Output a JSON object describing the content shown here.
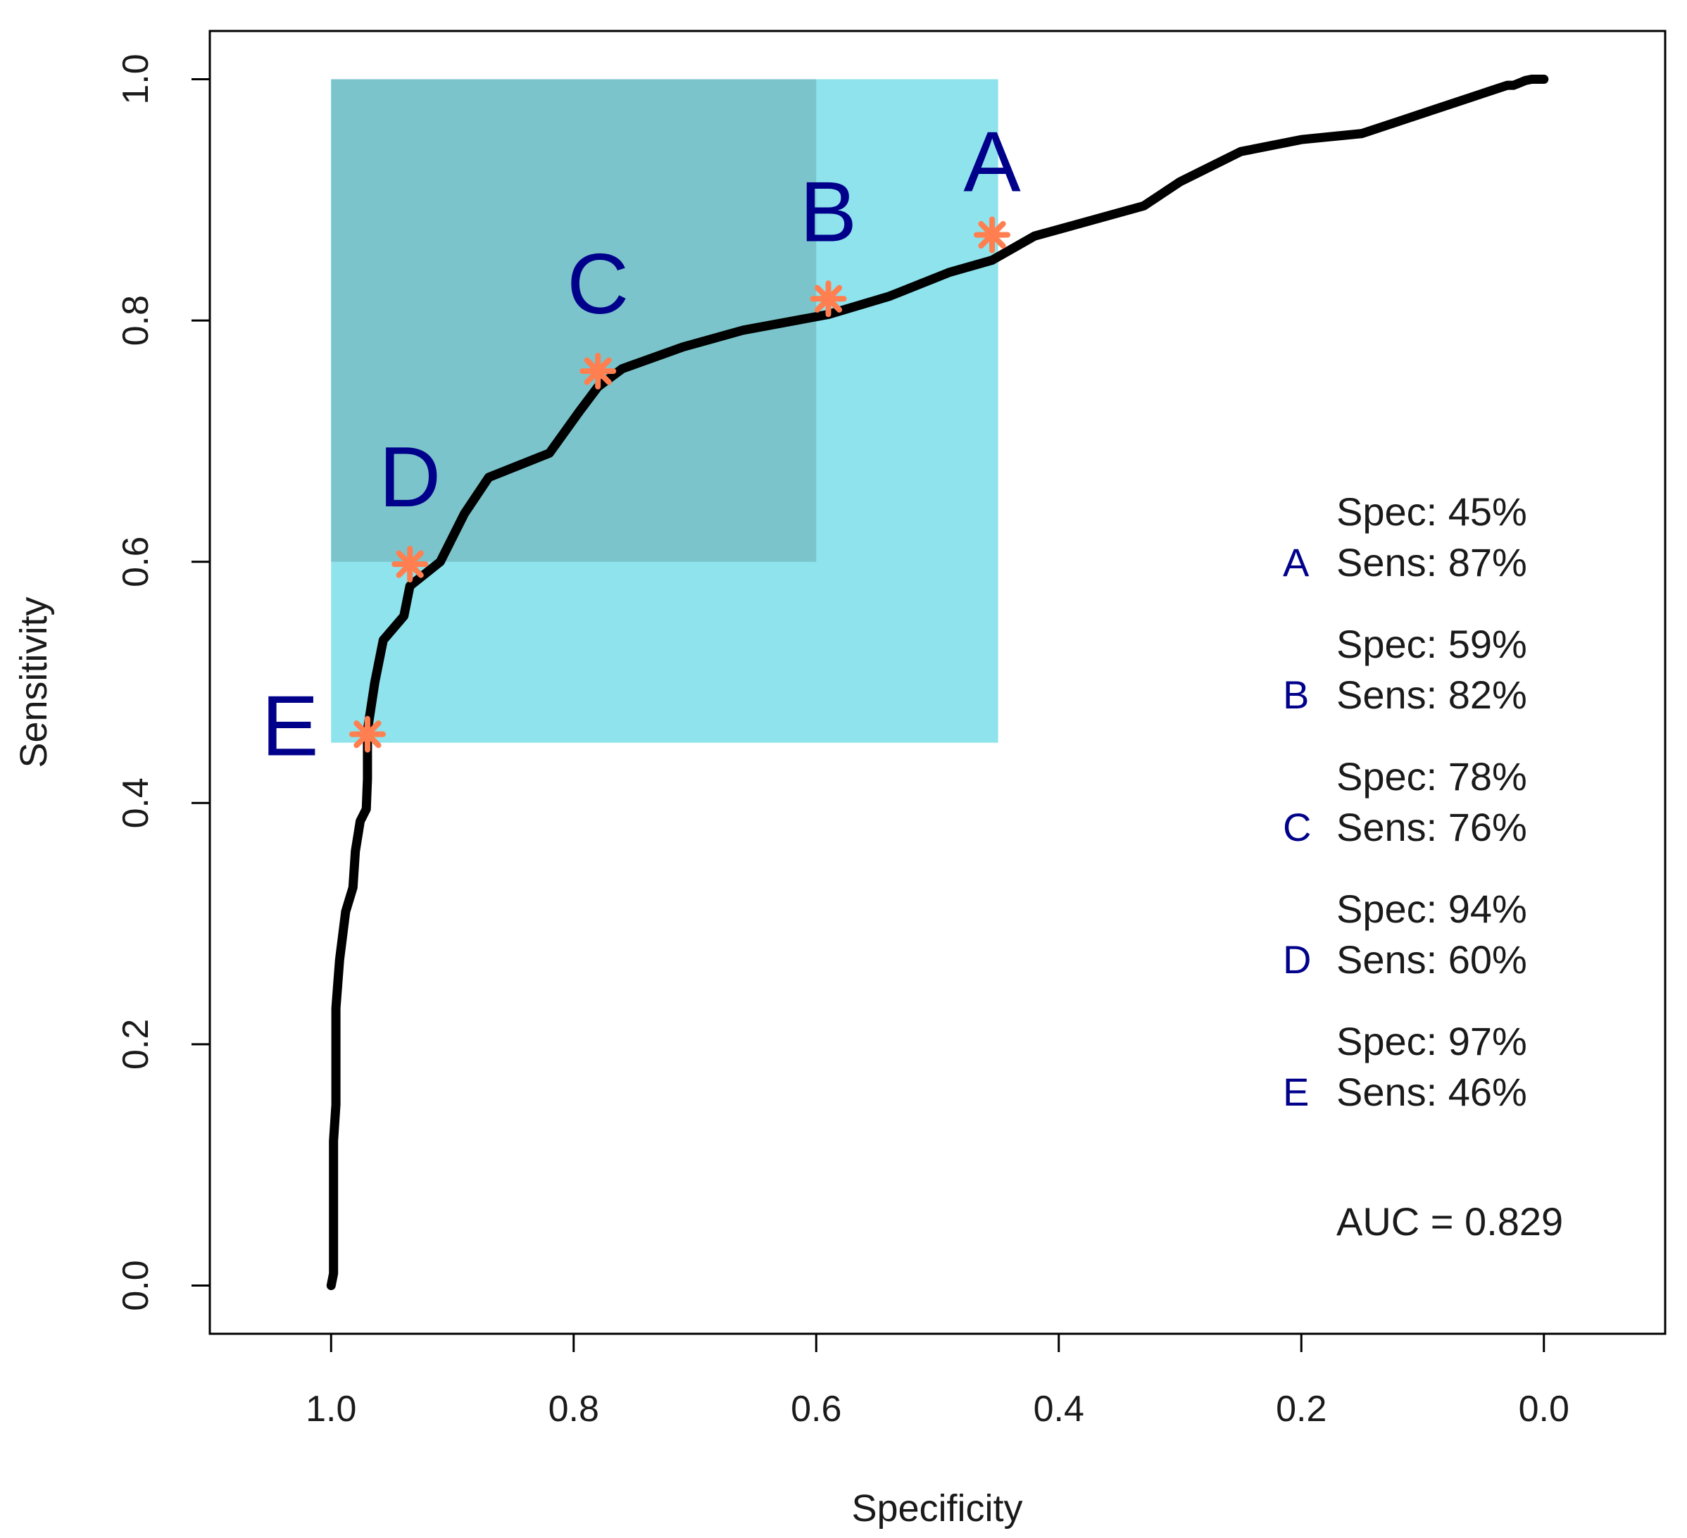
{
  "chart_data": {
    "type": "line",
    "title": "",
    "xlabel": "Specificity",
    "ylabel": "Sensitivity",
    "xlim": [
      1.1,
      -0.1
    ],
    "ylim": [
      -0.04,
      1.04
    ],
    "x_reversed": true,
    "xticks": [
      "1.0",
      "0.8",
      "0.6",
      "0.4",
      "0.2",
      "0.0"
    ],
    "xtick_values": [
      1.0,
      0.8,
      0.6,
      0.4,
      0.2,
      0.0
    ],
    "yticks": [
      "0.0",
      "0.2",
      "0.4",
      "0.6",
      "0.8",
      "1.0"
    ],
    "ytick_values": [
      0.0,
      0.2,
      0.4,
      0.6,
      0.8,
      1.0
    ],
    "series": [
      {
        "name": "ROC curve",
        "color": "#000000",
        "x": [
          1.0,
          0.998,
          0.998,
          0.996,
          0.996,
          0.993,
          0.988,
          0.982,
          0.98,
          0.976,
          0.971,
          0.97,
          0.97,
          0.964,
          0.957,
          0.94,
          0.935,
          0.91,
          0.89,
          0.87,
          0.82,
          0.795,
          0.78,
          0.76,
          0.71,
          0.66,
          0.59,
          0.54,
          0.49,
          0.455,
          0.42,
          0.33,
          0.3,
          0.25,
          0.2,
          0.15,
          0.12,
          0.09,
          0.06,
          0.045,
          0.03,
          0.025,
          0.015,
          0.01,
          0.0
        ],
        "y": [
          0.0,
          0.01,
          0.12,
          0.15,
          0.23,
          0.27,
          0.31,
          0.33,
          0.36,
          0.385,
          0.395,
          0.42,
          0.46,
          0.5,
          0.535,
          0.555,
          0.58,
          0.6,
          0.64,
          0.67,
          0.69,
          0.725,
          0.745,
          0.76,
          0.778,
          0.792,
          0.805,
          0.82,
          0.84,
          0.85,
          0.87,
          0.895,
          0.915,
          0.94,
          0.95,
          0.955,
          0.965,
          0.975,
          0.985,
          0.99,
          0.995,
          0.995,
          0.999,
          1.0,
          1.0
        ]
      }
    ],
    "regions": [
      {
        "name": "Region A",
        "color": "#8fe3ec",
        "x_from": 1.0,
        "x_to": 0.45,
        "y_from": 0.45,
        "y_to": 1.0
      },
      {
        "name": "Region B",
        "color": "#7cc4cb",
        "x_from": 1.0,
        "x_to": 0.6,
        "y_from": 0.6,
        "y_to": 1.0
      }
    ],
    "points": [
      {
        "label": "A",
        "specificity": 0.455,
        "sensitivity": 0.871
      },
      {
        "label": "B",
        "specificity": 0.59,
        "sensitivity": 0.818
      },
      {
        "label": "C",
        "specificity": 0.78,
        "sensitivity": 0.758
      },
      {
        "label": "D",
        "specificity": 0.935,
        "sensitivity": 0.598
      },
      {
        "label": "E",
        "specificity": 0.97,
        "sensitivity": 0.457
      }
    ],
    "legend": [
      {
        "letter": "A",
        "spec": "Spec: 45%",
        "sens": "Sens: 87%"
      },
      {
        "letter": "B",
        "spec": "Spec: 59%",
        "sens": "Sens: 82%"
      },
      {
        "letter": "C",
        "spec": "Spec: 78%",
        "sens": "Sens: 76%"
      },
      {
        "letter": "D",
        "spec": "Spec: 94%",
        "sens": "Sens: 60%"
      },
      {
        "letter": "E",
        "spec": "Spec: 97%",
        "sens": "Sens: 46%"
      }
    ],
    "auc_text": "AUC = 0.829",
    "point_marker_color": "#ff7f50",
    "letter_color": "#00008b",
    "legend_placement": "right"
  }
}
